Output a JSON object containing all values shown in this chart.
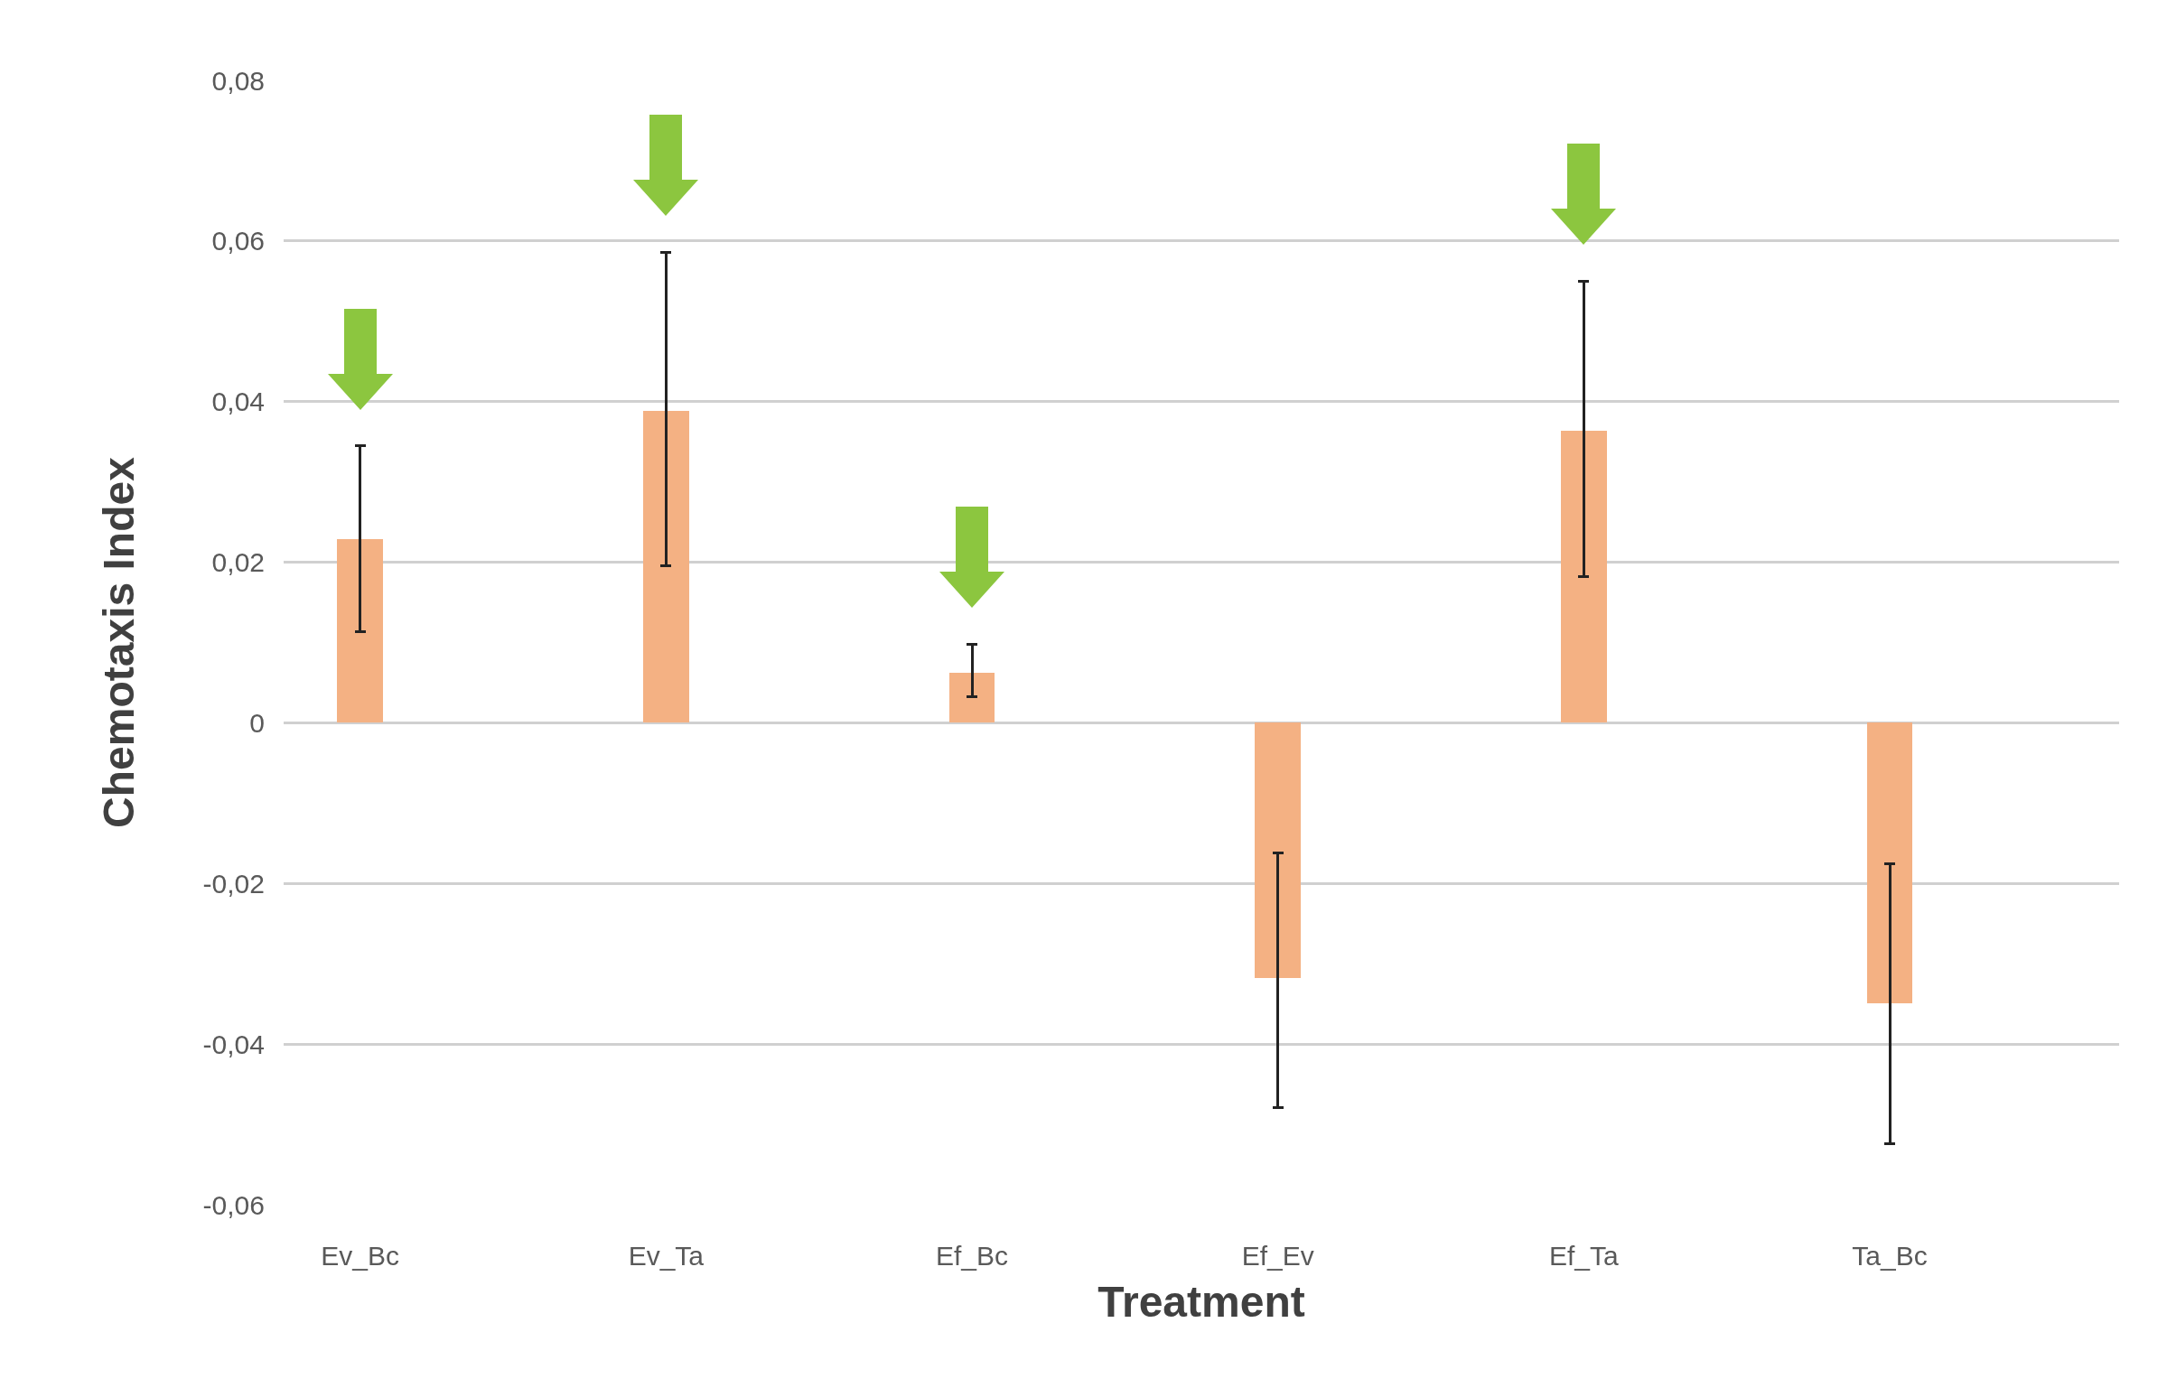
{
  "chart_data": {
    "type": "bar",
    "xlabel": "Treatment",
    "ylabel": "Chemotaxis Index",
    "categories": [
      "Ev_Bc",
      "Ev_Ta",
      "Ef_Bc",
      "Ef_Ev",
      "Ef_Ta",
      "Ta_Bc"
    ],
    "values": [
      0.0229,
      0.0388,
      0.0062,
      -0.0318,
      0.0364,
      -0.0349
    ],
    "errors": [
      [
        0.0113,
        0.0345
      ],
      [
        0.0196,
        0.0586
      ],
      [
        0.0033,
        0.0098
      ],
      [
        -0.0479,
        -0.0162
      ],
      [
        0.0182,
        0.055
      ],
      [
        -0.0524,
        -0.0175
      ]
    ],
    "color": "#f4b183",
    "ylim": [
      -0.06,
      0.08
    ],
    "yticks": [
      {
        "value": -0.06,
        "label": "-0,06"
      },
      {
        "value": -0.04,
        "label": "-0,04"
      },
      {
        "value": -0.02,
        "label": "-0,02"
      },
      0,
      {
        "value": 0.02,
        "label": "0,02"
      },
      {
        "value": 0.04,
        "label": "0,04"
      },
      {
        "value": 0.06,
        "label": "0,06"
      },
      {
        "value": 0.08,
        "label": "0,08"
      }
    ],
    "grid": "y"
  }
}
